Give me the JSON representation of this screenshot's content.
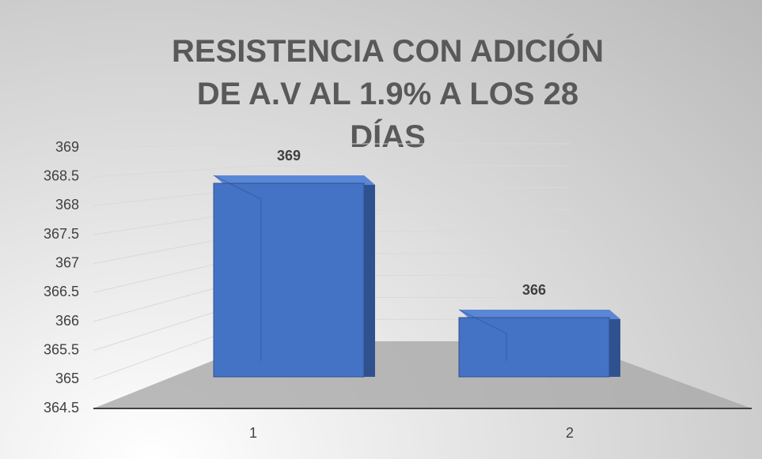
{
  "chart_data": {
    "type": "bar",
    "title": "RESISTENCIA CON ADICIÓN DE A.V AL 1.9% A LOS 28 DÍAS",
    "categories": [
      "1",
      "2"
    ],
    "values": [
      369,
      366
    ],
    "color": "#4472c4",
    "ylim": [
      364.5,
      369
    ],
    "yticks": [
      364.5,
      365,
      365.5,
      366,
      366.5,
      367,
      367.5,
      368,
      368.5,
      369
    ],
    "grid": true
  }
}
